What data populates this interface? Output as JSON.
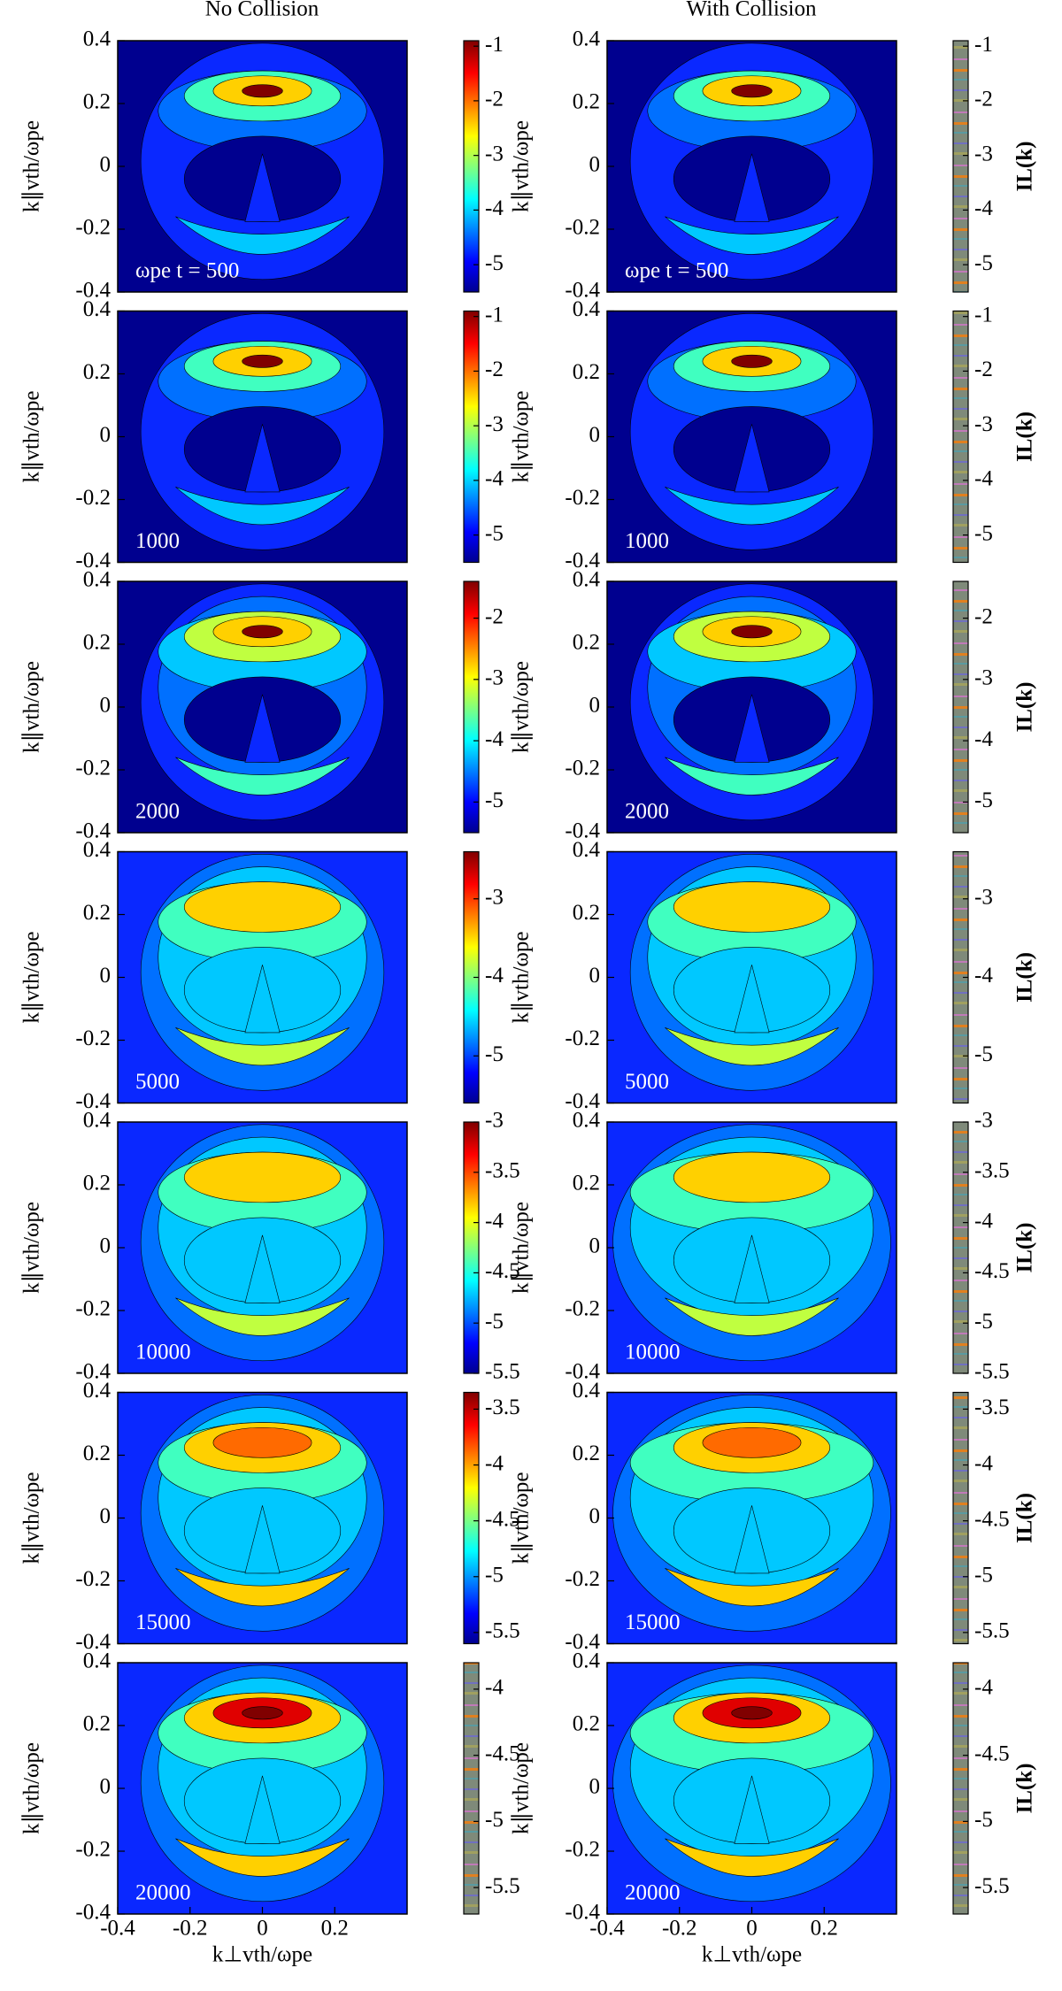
{
  "figure": {
    "column_titles": [
      "No Collision",
      "With Collision"
    ],
    "xlabel": "k⊥vth/ωpe",
    "ylabel": "k∥vth/ωpe",
    "colorbar_label": "IL(k)",
    "xlim": [
      -0.4,
      0.4
    ],
    "xticks": [
      -0.4,
      -0.2,
      0,
      0.2
    ],
    "ylim": [
      -0.4,
      0.4
    ],
    "yticks": [
      -0.4,
      -0.2,
      0,
      0.2,
      0.4
    ],
    "rows": [
      {
        "time_label": "ωpe t = 500",
        "colorbar_lim": [
          -5.5,
          -0.9
        ],
        "colorbar_ticks": [
          -1,
          -2,
          -3,
          -4,
          -5
        ]
      },
      {
        "time_label": "1000",
        "colorbar_lim": [
          -5.5,
          -0.9
        ],
        "colorbar_ticks": [
          -1,
          -2,
          -3,
          -4,
          -5
        ]
      },
      {
        "time_label": "2000",
        "colorbar_lim": [
          -5.5,
          -1.4
        ],
        "colorbar_ticks": [
          -2,
          -3,
          -4,
          -5
        ]
      },
      {
        "time_label": "5000",
        "colorbar_lim": [
          -5.6,
          -2.4
        ],
        "colorbar_ticks": [
          -3,
          -4,
          -5
        ]
      },
      {
        "time_label": "10000",
        "colorbar_lim": [
          -5.5,
          -3
        ],
        "colorbar_ticks": [
          -3,
          -3.5,
          -4,
          -4.5,
          -5,
          -5.5
        ]
      },
      {
        "time_label": "15000",
        "colorbar_lim": [
          -5.6,
          -3.35
        ],
        "colorbar_ticks": [
          -3.5,
          -4,
          -4.5,
          -5,
          -5.5
        ]
      },
      {
        "time_label": "20000",
        "colorbar_lim": [
          -5.7,
          -3.8
        ],
        "colorbar_ticks": [
          -4,
          -4.5,
          -5,
          -5.5
        ]
      }
    ]
  }
}
